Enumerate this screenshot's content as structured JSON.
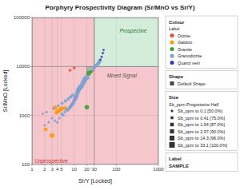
{
  "chart_data": {
    "type": "scatter",
    "title": "Porphyry Prospectivity Diagram (Sr/MnO vs Sr/Y)",
    "xlabel": "Sr/Y [Locked]",
    "ylabel": "Sr/MnO [Locked]",
    "log": true,
    "grid": true,
    "marker": "circle",
    "xlim": [
      1,
      1000
    ],
    "ylim": [
      100,
      100000
    ],
    "xticks": [
      1,
      2,
      3,
      4,
      5,
      10,
      20,
      30,
      100,
      1000
    ],
    "yticks": [
      100,
      1000,
      10000,
      100000
    ],
    "x_boundary": 30,
    "y_boundary": 10000,
    "regions": [
      {
        "xlim": [
          1,
          1000
        ],
        "ylim": [
          100,
          100000
        ],
        "color": "#f5c6cb"
      },
      {
        "xlim": [
          30,
          1000
        ],
        "ylim": [
          10000,
          100000
        ],
        "color": "#d4edda"
      },
      {
        "xlim": [
          20,
          30
        ],
        "ylim": [
          8000,
          10000
        ],
        "color": "#b0b0b0"
      }
    ],
    "annotations": [
      {
        "text": "Prospective",
        "x": 120,
        "y": 52000,
        "color": "#2d7a2d"
      },
      {
        "text": "Mixed Signal",
        "x": 60,
        "y": 6500,
        "color": "#555555"
      },
      {
        "text": "Unprospective",
        "x": 1.15,
        "y": 115,
        "color": "#cc3333"
      }
    ],
    "x": [
      2.1,
      3.0,
      3.5,
      4.0,
      3.8,
      4.5,
      5.0,
      6.0,
      20.0,
      25.0,
      22.0,
      4.0,
      4.5,
      5.0,
      5.5,
      6.0,
      6.5,
      7.0,
      7.5,
      8.0,
      8.5,
      9.0,
      9.5,
      10.0,
      10.5,
      11.0,
      11.5,
      12.0,
      12.5,
      13.0,
      14.0,
      15.0,
      16.0,
      17.0,
      18.0,
      20.0,
      3.0,
      3.5,
      2.5,
      2.0,
      1.8,
      2.2,
      3.2,
      4.2,
      5.2,
      6.2,
      7.2,
      8.2,
      9.2,
      30.0,
      32.0,
      35.0,
      38.0,
      40.0,
      42.0,
      45.0,
      48.0,
      50.0,
      8.0,
      10.0
    ],
    "values": [
      520,
      390,
      1450,
      1200,
      1150,
      1280,
      1380,
      1420,
      1480,
      7800,
      7200,
      720,
      880,
      1080,
      1020,
      1180,
      1320,
      1280,
      1380,
      1480,
      1580,
      1680,
      1780,
      1980,
      2180,
      2380,
      2580,
      2980,
      3180,
      3480,
      3780,
      3980,
      4480,
      4980,
      5480,
      5980,
      880,
      780,
      730,
      630,
      1080,
      1180,
      1380,
      1580,
      1780,
      1980,
      2180,
      2380,
      2580,
      9600,
      10400,
      10900,
      11800,
      12800,
      13800,
      15800,
      18800,
      21800,
      8400,
      9400
    ],
    "sizes": [
      12,
      18,
      14,
      13,
      12,
      14,
      15,
      12,
      16,
      10,
      18,
      5,
      5,
      6,
      7,
      6,
      7,
      8,
      9,
      10,
      10,
      11,
      11,
      12,
      13,
      14,
      14,
      15,
      16,
      17,
      17,
      18,
      19,
      19,
      20,
      21,
      5,
      5,
      5,
      4,
      4,
      5,
      5,
      6,
      7,
      8,
      8,
      9,
      9,
      10,
      11,
      11,
      12,
      12,
      4,
      4,
      4,
      4,
      6,
      7
    ],
    "colors": [
      "#ff9900",
      "#ff9900",
      "#ff9900",
      "#ff9900",
      "#ff9900",
      "#ff9900",
      "#ff9900",
      "#ff9900",
      "#33a02c",
      "#33a02c",
      "#33a02c",
      "#7b9fd4",
      "#7b9fd4",
      "#7b9fd4",
      "#7b9fd4",
      "#7b9fd4",
      "#7b9fd4",
      "#7b9fd4",
      "#7b9fd4",
      "#7b9fd4",
      "#7b9fd4",
      "#7b9fd4",
      "#7b9fd4",
      "#7b9fd4",
      "#7b9fd4",
      "#7b9fd4",
      "#7b9fd4",
      "#7b9fd4",
      "#7b9fd4",
      "#7b9fd4",
      "#7b9fd4",
      "#7b9fd4",
      "#7b9fd4",
      "#7b9fd4",
      "#7b9fd4",
      "#7b9fd4",
      "#7b9fd4",
      "#7b9fd4",
      "#7b9fd4",
      "#7b9fd4",
      "#7b9fd4",
      "#7b9fd4",
      "#7b9fd4",
      "#7b9fd4",
      "#7b9fd4",
      "#7b9fd4",
      "#7b9fd4",
      "#7b9fd4",
      "#7b9fd4",
      "#7b9fd4",
      "#7b9fd4",
      "#7b9fd4",
      "#7b9fd4",
      "#7b9fd4",
      "#3333bb",
      "#3333bb",
      "#3333bb",
      "#3333bb",
      "#e84c33",
      "#e84c33"
    ],
    "color_legend": {
      "title": "Colour",
      "subtitle": "Label",
      "items": [
        {
          "label": "Diorite",
          "color": "#e84c33"
        },
        {
          "label": "Gabbro",
          "color": "#ff9900"
        },
        {
          "label": "Granite",
          "color": "#33a02c"
        },
        {
          "label": "Granodiorite",
          "color": "#7b9fd4"
        },
        {
          "label": "Quartz vein",
          "color": "#3333bb"
        }
      ]
    },
    "shape_legend": {
      "title": "Shape",
      "items": [
        "Default Shape"
      ]
    },
    "size_legend": {
      "title": "Size",
      "subtitle": "Sb_ppm Progressive Half",
      "items": [
        {
          "label": "Sb_ppm to 0.1 [50.0%]",
          "size": 2
        },
        {
          "label": "Sb_ppm to 0.41 [75.0%]",
          "size": 3
        },
        {
          "label": "Sb_ppm to 1.54 [87.0%]",
          "size": 5
        },
        {
          "label": "Sb_ppm to 2.97 [90.0%]",
          "size": 7
        },
        {
          "label": "Sb_ppm to 14.3 [96.0%]",
          "size": 9
        },
        {
          "label": "Sb_ppm to 33.1 [100.0%]",
          "size": 12
        }
      ]
    },
    "label_legend": {
      "title": "Label",
      "items": [
        "SAMPLE"
      ]
    }
  }
}
